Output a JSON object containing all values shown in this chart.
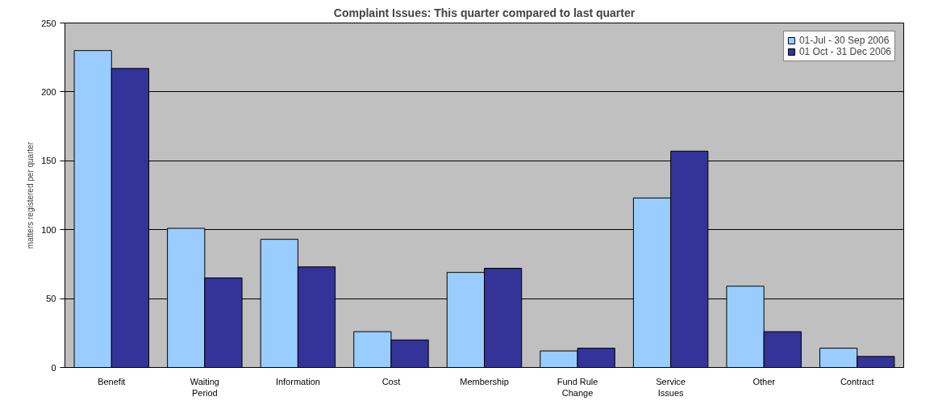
{
  "chart_data": {
    "type": "bar",
    "title": "Complaint Issues: This quarter compared to last quarter",
    "ylabel": "matters registered per quarter",
    "categories": [
      "Benefit",
      "Waiting Period",
      "Information",
      "Cost",
      "Membership",
      "Fund Rule Change",
      "Service Issues",
      "Other",
      "Contract"
    ],
    "series": [
      {
        "name": "01-Jul - 30 Sep 2006",
        "color": "#99ccff",
        "values": [
          230,
          101,
          93,
          26,
          69,
          12,
          123,
          59,
          14
        ]
      },
      {
        "name": "01 Oct - 31 Dec 2006",
        "color": "#333399",
        "values": [
          217,
          65,
          73,
          20,
          72,
          14,
          157,
          26,
          8
        ]
      }
    ],
    "ylim": [
      0,
      250
    ],
    "yticks": [
      0,
      50,
      100,
      150,
      200,
      250
    ],
    "grid": "y",
    "legend": "top right"
  }
}
